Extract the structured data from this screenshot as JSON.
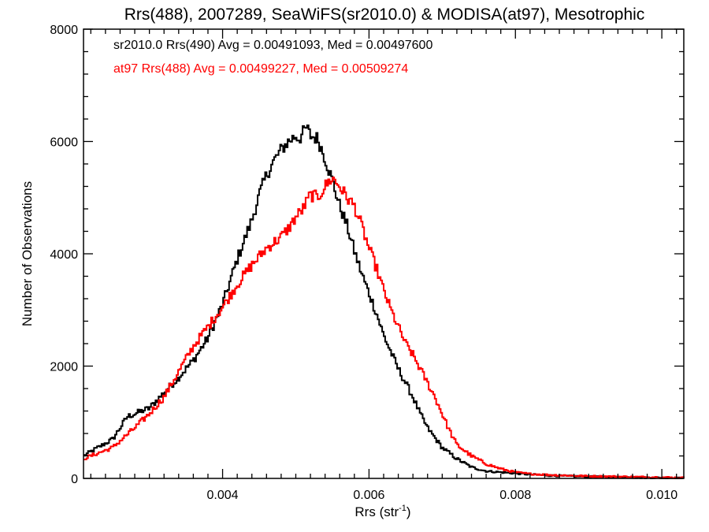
{
  "chart_data": {
    "type": "line",
    "title": "Rrs(488), 2007289, SeaWiFS(sr2010.0) & MODISA(at97), Mesotrophic",
    "xlabel_main": "Rrs (str",
    "xlabel_sup": "-1",
    "xlabel_close": ")",
    "ylabel": "Number of Observations",
    "xlim": [
      0.0021,
      0.0103
    ],
    "ylim": [
      0,
      8000
    ],
    "xticks": [
      0.004,
      0.006,
      0.008,
      0.01
    ],
    "xtick_labels": [
      "0.004",
      "0.006",
      "0.008",
      "0.010"
    ],
    "yticks": [
      0,
      2000,
      4000,
      6000,
      8000
    ],
    "ytick_labels": [
      "0",
      "2000",
      "4000",
      "6000",
      "8000"
    ],
    "step": "histogram",
    "annotations": [
      {
        "text": "sr2010.0 Rrs(490) Avg = 0.00491093, Med = 0.00497600",
        "color": "#000000"
      },
      {
        "text": "at97 Rrs(488) Avg = 0.00499227, Med = 0.00509274",
        "color": "#ff0000"
      }
    ],
    "series": [
      {
        "color": "#000000",
        "x": [
          0.0021,
          0.0025,
          0.0027,
          0.003,
          0.0034,
          0.0036,
          0.0038,
          0.004,
          0.0042,
          0.0044,
          0.0045,
          0.0046,
          0.0047,
          0.0048,
          0.0049,
          0.005,
          0.00505,
          0.0051,
          0.00515,
          0.0052,
          0.0053,
          0.0054,
          0.0055,
          0.0056,
          0.0057,
          0.0058,
          0.0059,
          0.006,
          0.0061,
          0.0062,
          0.0063,
          0.0064,
          0.0065,
          0.0066,
          0.0067,
          0.0068,
          0.007,
          0.0072,
          0.0074,
          0.0076,
          0.0078,
          0.008,
          0.0082,
          0.0085,
          0.009,
          0.0095,
          0.01,
          0.0103
        ],
        "y": [
          400,
          700,
          1100,
          1250,
          1800,
          2100,
          2500,
          3100,
          3900,
          4600,
          5050,
          5400,
          5650,
          5850,
          6000,
          6100,
          6050,
          6150,
          6250,
          6100,
          6050,
          5700,
          5300,
          4850,
          4500,
          4050,
          3650,
          3300,
          2950,
          2550,
          2250,
          1950,
          1700,
          1450,
          1150,
          900,
          550,
          350,
          200,
          130,
          110,
          90,
          70,
          50,
          30,
          20,
          10,
          5
        ]
      },
      {
        "color": "#ff0000",
        "x": [
          0.0021,
          0.0025,
          0.0028,
          0.003,
          0.0032,
          0.0034,
          0.0036,
          0.0038,
          0.004,
          0.0042,
          0.0044,
          0.0046,
          0.0048,
          0.0049,
          0.005,
          0.0051,
          0.0052,
          0.0053,
          0.0054,
          0.0055,
          0.0056,
          0.0057,
          0.0058,
          0.0059,
          0.006,
          0.0061,
          0.0062,
          0.0063,
          0.0064,
          0.0065,
          0.0066,
          0.0067,
          0.0068,
          0.0069,
          0.007,
          0.0071,
          0.0072,
          0.0074,
          0.0076,
          0.0078,
          0.008,
          0.0082,
          0.0085,
          0.009,
          0.0095,
          0.01,
          0.0103
        ],
        "y": [
          350,
          550,
          900,
          1150,
          1450,
          1900,
          2350,
          2700,
          3050,
          3450,
          3800,
          4100,
          4300,
          4450,
          4650,
          4800,
          5050,
          5000,
          5200,
          5350,
          5200,
          5000,
          4850,
          4500,
          4100,
          3750,
          3350,
          3000,
          2700,
          2400,
          2200,
          1950,
          1700,
          1450,
          1150,
          850,
          600,
          400,
          260,
          170,
          110,
          80,
          60,
          40,
          30,
          20,
          10
        ]
      }
    ]
  }
}
